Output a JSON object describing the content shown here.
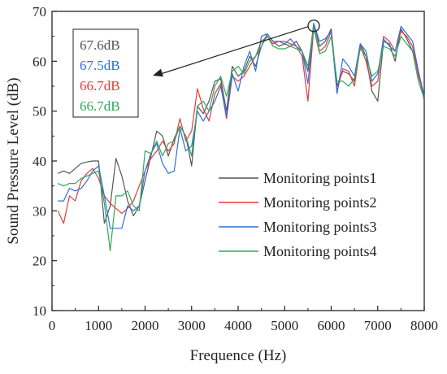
{
  "chart_data": {
    "type": "line",
    "xlabel": "Frequence (Hz)",
    "ylabel": "Sound Pressure Level (dB)",
    "xlim": [
      0,
      8000
    ],
    "ylim": [
      10,
      70
    ],
    "xticks": [
      0,
      1000,
      2000,
      3000,
      4000,
      5000,
      6000,
      7000,
      8000
    ],
    "yticks": [
      10,
      20,
      30,
      40,
      50,
      60,
      70
    ],
    "legend_position": "lower-right",
    "grid": false,
    "x": [
      125,
      250,
      375,
      500,
      625,
      750,
      875,
      1000,
      1125,
      1250,
      1375,
      1500,
      1625,
      1750,
      1875,
      2000,
      2125,
      2250,
      2375,
      2500,
      2625,
      2750,
      2875,
      3000,
      3125,
      3250,
      3375,
      3500,
      3625,
      3750,
      3875,
      4000,
      4125,
      4250,
      4375,
      4500,
      4625,
      4750,
      4875,
      5000,
      5125,
      5250,
      5375,
      5500,
      5625,
      5750,
      5875,
      6000,
      6125,
      6250,
      6375,
      6500,
      6625,
      6750,
      6875,
      7000,
      7125,
      7250,
      7375,
      7500,
      7625,
      7750,
      7875,
      8000
    ],
    "series": [
      {
        "name": "Monitoring points1",
        "color": "#555555",
        "values": [
          37.5,
          38.0,
          37.5,
          38.5,
          39.5,
          39.8,
          40.0,
          40.0,
          27.5,
          31.0,
          40.5,
          37.0,
          32.0,
          29.0,
          31.0,
          36.0,
          41.0,
          46.0,
          45.0,
          41.0,
          44.5,
          47.0,
          45.0,
          39.0,
          51.0,
          49.5,
          52.0,
          56.0,
          56.5,
          50.0,
          59.0,
          57.0,
          58.0,
          61.0,
          59.0,
          63.0,
          65.5,
          64.0,
          63.0,
          63.5,
          63.0,
          64.0,
          62.0,
          58.0,
          67.6,
          63.0,
          64.0,
          66.5,
          55.0,
          58.0,
          57.5,
          56.0,
          63.5,
          61.0,
          54.0,
          52.0,
          64.0,
          63.5,
          60.0,
          66.5,
          64.5,
          62.0,
          58.0,
          52.0
        ]
      },
      {
        "name": "Monitoring points2",
        "color": "#e8393b",
        "values": [
          30.0,
          27.5,
          33.0,
          32.0,
          36.0,
          37.5,
          38.5,
          36.5,
          33.0,
          31.5,
          30.5,
          29.5,
          30.5,
          32.0,
          35.0,
          38.0,
          40.5,
          42.0,
          44.0,
          42.0,
          43.5,
          48.5,
          44.0,
          46.0,
          54.5,
          50.5,
          48.0,
          53.5,
          55.5,
          48.5,
          57.0,
          56.0,
          57.0,
          59.0,
          61.0,
          64.0,
          65.0,
          63.5,
          64.0,
          64.0,
          63.5,
          63.0,
          61.0,
          52.0,
          66.7,
          62.0,
          63.0,
          66.0,
          54.0,
          58.5,
          58.0,
          55.0,
          63.0,
          60.0,
          55.0,
          56.0,
          65.0,
          64.0,
          62.0,
          66.0,
          65.0,
          63.0,
          57.0,
          53.0
        ]
      },
      {
        "name": "Monitoring points3",
        "color": "#2e6fe0",
        "values": [
          32.0,
          32.0,
          34.5,
          34.0,
          34.5,
          36.0,
          38.0,
          39.0,
          33.0,
          26.5,
          26.5,
          26.5,
          31.0,
          30.0,
          31.0,
          38.0,
          41.5,
          43.5,
          39.5,
          37.5,
          38.0,
          46.5,
          42.0,
          43.0,
          50.0,
          48.0,
          50.0,
          52.0,
          55.0,
          49.0,
          57.5,
          54.0,
          59.0,
          62.0,
          58.0,
          65.0,
          65.5,
          64.0,
          64.0,
          63.5,
          64.5,
          63.0,
          62.0,
          55.5,
          67.5,
          64.0,
          64.5,
          66.0,
          53.5,
          60.5,
          59.0,
          57.0,
          63.5,
          62.0,
          56.0,
          57.5,
          64.5,
          63.0,
          62.0,
          67.0,
          65.5,
          64.0,
          58.0,
          53.0
        ]
      },
      {
        "name": "Monitoring points4",
        "color": "#2eaa5a",
        "values": [
          35.5,
          35.0,
          35.5,
          35.5,
          36.5,
          37.0,
          37.5,
          38.0,
          31.5,
          22.0,
          33.0,
          33.0,
          34.0,
          31.0,
          30.0,
          42.0,
          41.5,
          44.0,
          41.0,
          43.5,
          44.0,
          47.0,
          45.0,
          41.0,
          51.0,
          52.0,
          50.0,
          55.0,
          57.0,
          53.0,
          58.0,
          59.0,
          57.5,
          60.0,
          61.0,
          63.0,
          65.0,
          63.0,
          62.5,
          62.5,
          63.0,
          62.5,
          62.0,
          59.0,
          66.7,
          61.5,
          62.0,
          65.0,
          56.0,
          56.0,
          55.0,
          56.5,
          62.5,
          61.0,
          57.0,
          58.0,
          63.0,
          62.5,
          61.0,
          65.0,
          63.5,
          62.0,
          56.0,
          52.5
        ]
      }
    ],
    "peak_marker": {
      "x": 5625,
      "y": 67.1
    },
    "annotation_values": [
      {
        "text": "67.6dB",
        "color": "#555555"
      },
      {
        "text": "67.5dB",
        "color": "#2e6fe0"
      },
      {
        "text": "66.7dB",
        "color": "#e8393b"
      },
      {
        "text": "66.7dB",
        "color": "#2eaa5a"
      }
    ]
  }
}
